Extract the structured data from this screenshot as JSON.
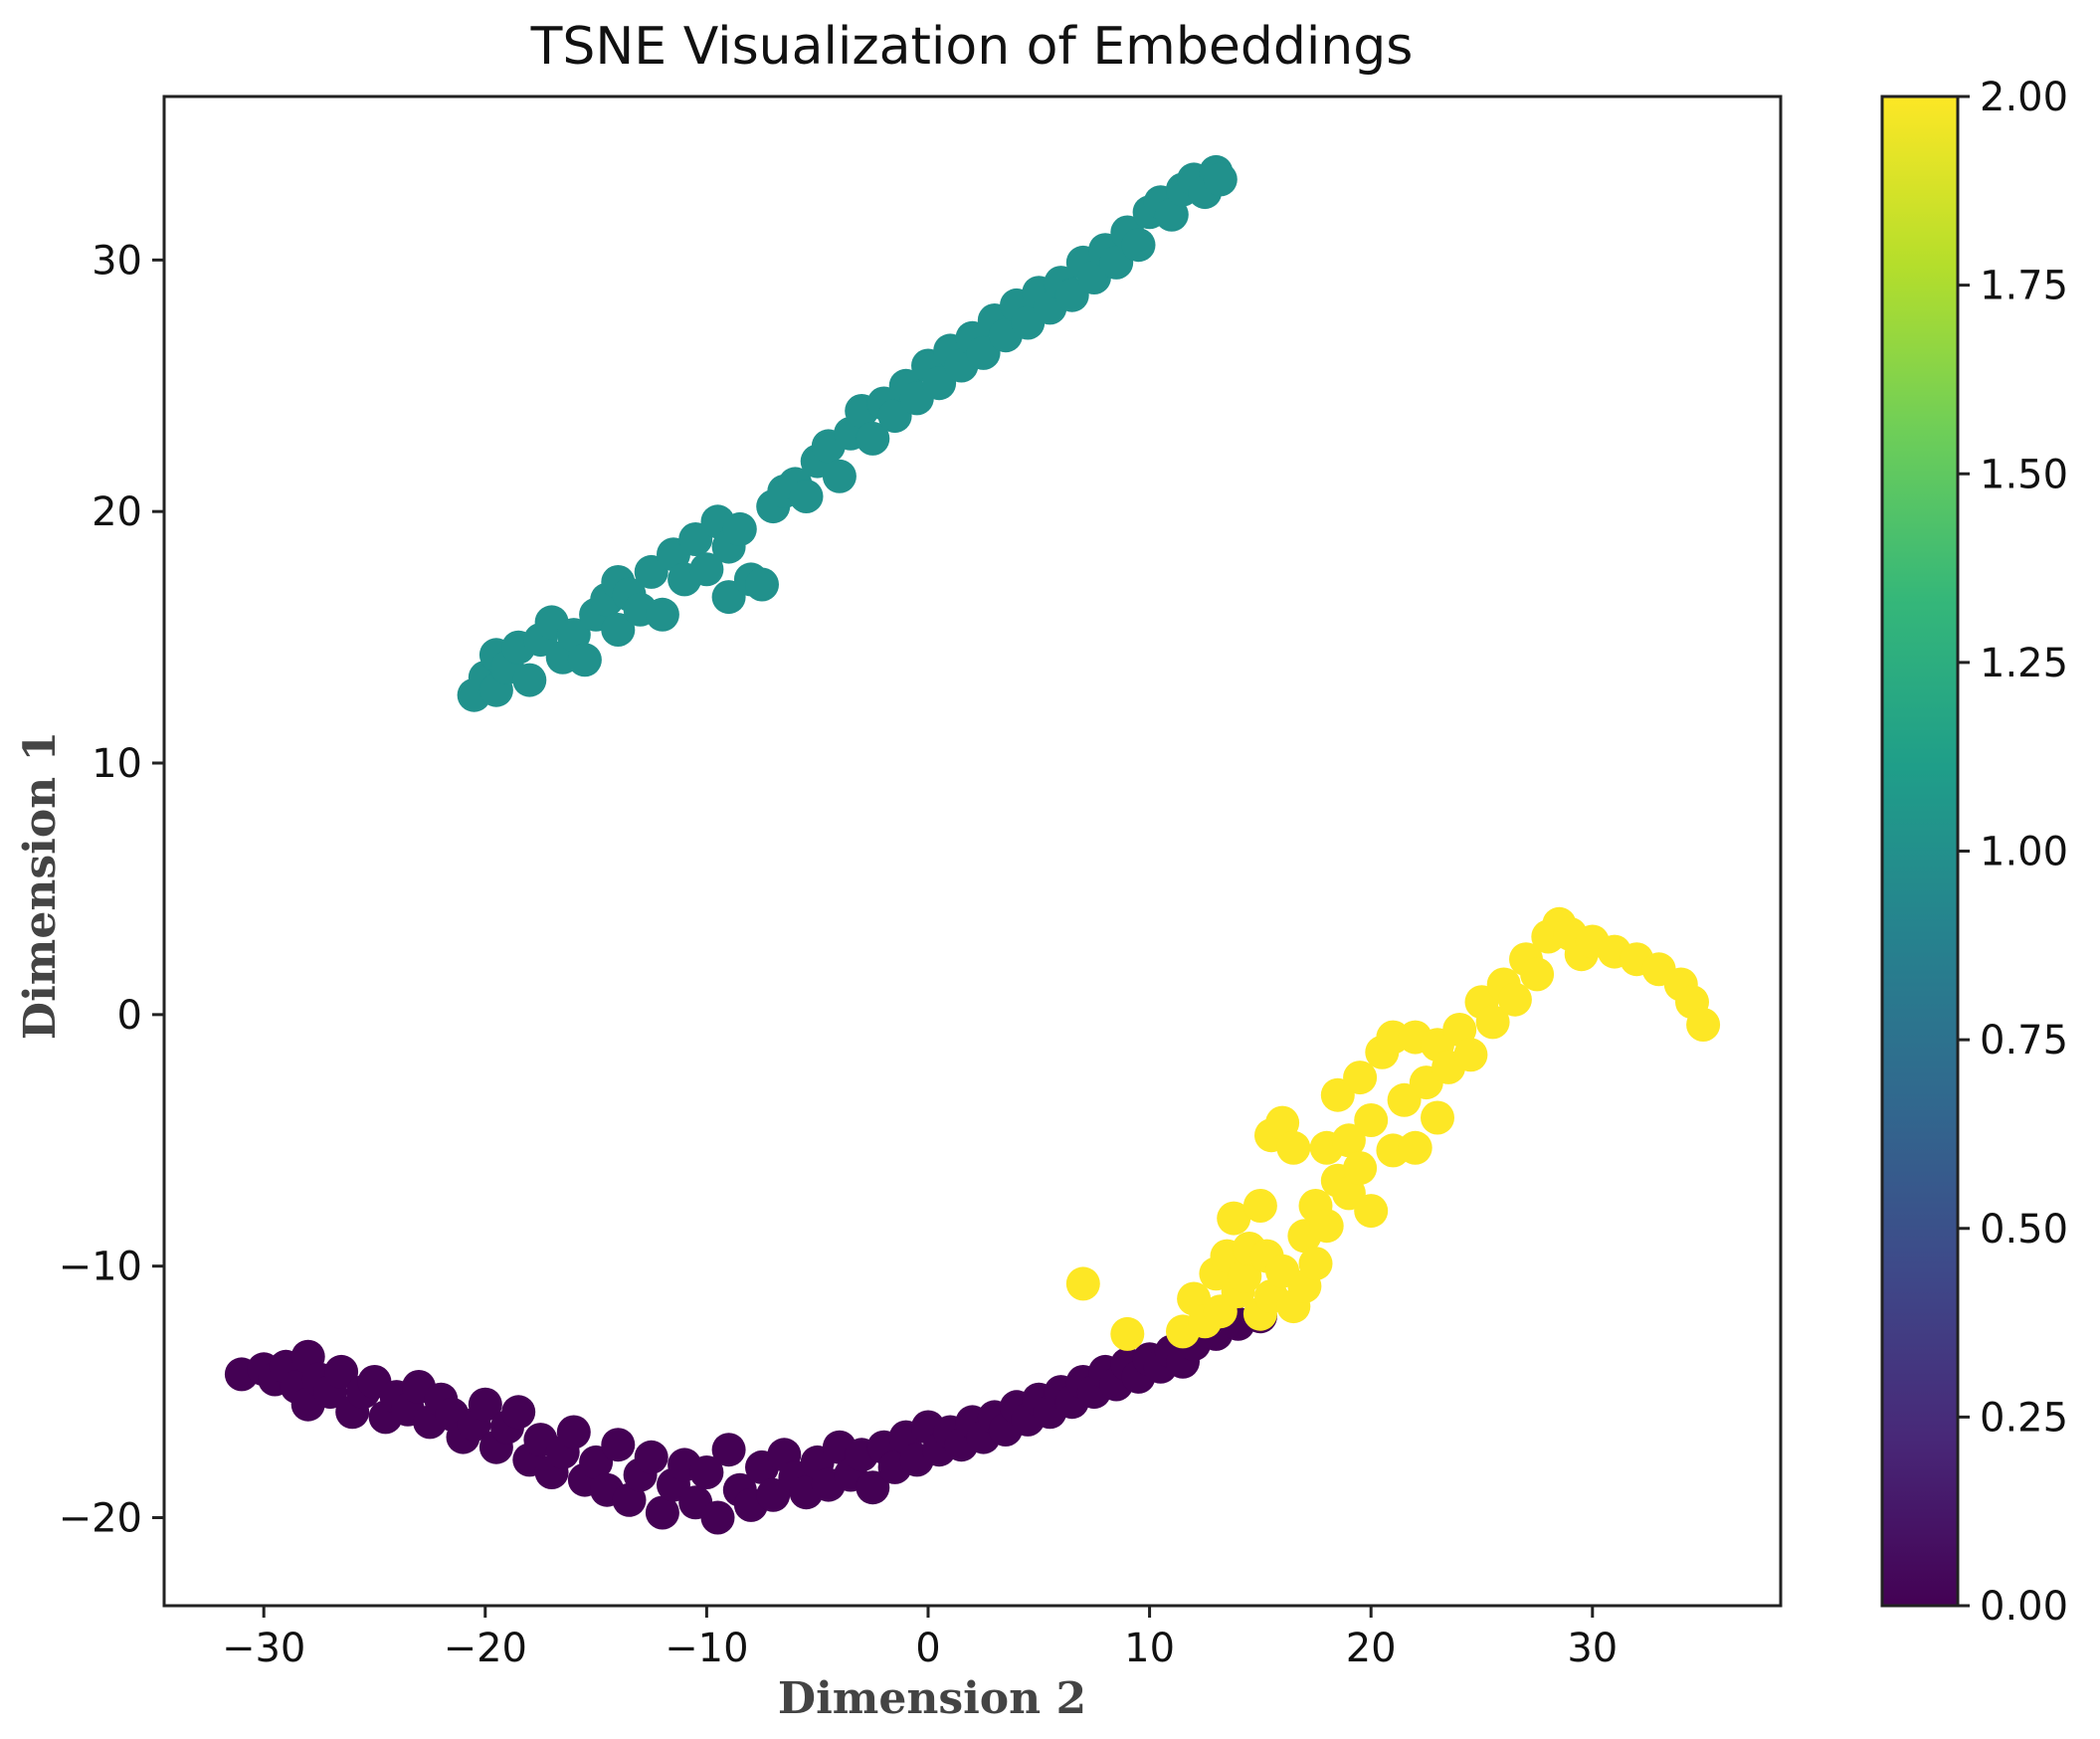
{
  "chart_data": {
    "type": "scatter",
    "title": "TSNE Visualization of Embeddings",
    "xlabel": "Dimension 2",
    "ylabel": "Dimension 1",
    "xlim": [
      -34.5,
      38.5
    ],
    "ylim": [
      -23.5,
      36.5
    ],
    "x_ticks": [
      -30,
      -20,
      -10,
      0,
      10,
      20,
      30
    ],
    "x_tick_labels": [
      "−30",
      "−20",
      "−10",
      "0",
      "10",
      "20",
      "30"
    ],
    "y_ticks": [
      -20,
      -10,
      0,
      10,
      20,
      30
    ],
    "y_tick_labels": [
      "−20",
      "−10",
      "0",
      "10",
      "20",
      "30"
    ],
    "colorbar": {
      "colormap": "viridis",
      "range": [
        0.0,
        2.0
      ],
      "ticks": [
        0.0,
        0.25,
        0.5,
        0.75,
        1.0,
        1.25,
        1.5,
        1.75,
        2.0
      ],
      "tick_labels": [
        "0.00",
        "0.25",
        "0.50",
        "0.75",
        "1.00",
        "1.25",
        "1.50",
        "1.75",
        "2.00"
      ],
      "stops": [
        "#440154",
        "#482878",
        "#3e4989",
        "#31688e",
        "#26828e",
        "#1f9e89",
        "#35b779",
        "#6ece58",
        "#b5de2b",
        "#fde725"
      ]
    },
    "series": [
      {
        "name": "0",
        "label_value": 0.0,
        "color": "#440154",
        "points": [
          [
            -31,
            -14.3
          ],
          [
            -30,
            -14.1
          ],
          [
            -29.5,
            -14.5
          ],
          [
            -29,
            -14
          ],
          [
            -28.5,
            -14.8
          ],
          [
            -28,
            -13.6
          ],
          [
            -28,
            -15.5
          ],
          [
            -27.5,
            -14.5
          ],
          [
            -27,
            -15
          ],
          [
            -26.5,
            -14.2
          ],
          [
            -26,
            -15.8
          ],
          [
            -25.5,
            -15
          ],
          [
            -25,
            -14.6
          ],
          [
            -24.5,
            -16
          ],
          [
            -24,
            -15.2
          ],
          [
            -23.5,
            -15.7
          ],
          [
            -23,
            -14.8
          ],
          [
            -22.5,
            -16.2
          ],
          [
            -22,
            -15.3
          ],
          [
            -21.5,
            -15.9
          ],
          [
            -21,
            -16.8
          ],
          [
            -20.5,
            -16.3
          ],
          [
            -20,
            -15.5
          ],
          [
            -19.5,
            -17.2
          ],
          [
            -19,
            -16.4
          ],
          [
            -18.5,
            -15.8
          ],
          [
            -18,
            -17.7
          ],
          [
            -17.5,
            -16.9
          ],
          [
            -17,
            -18.2
          ],
          [
            -16.5,
            -17.4
          ],
          [
            -16,
            -16.6
          ],
          [
            -15.5,
            -18.5
          ],
          [
            -15,
            -17.8
          ],
          [
            -14.5,
            -18.9
          ],
          [
            -14,
            -17.1
          ],
          [
            -13.5,
            -19.3
          ],
          [
            -13,
            -18.3
          ],
          [
            -12.5,
            -17.6
          ],
          [
            -12,
            -19.8
          ],
          [
            -11.5,
            -18.7
          ],
          [
            -11,
            -17.9
          ],
          [
            -10.5,
            -19.4
          ],
          [
            -10,
            -18.2
          ],
          [
            -9.5,
            -20
          ],
          [
            -9,
            -17.3
          ],
          [
            -8.5,
            -18.9
          ],
          [
            -8,
            -19.5
          ],
          [
            -7.5,
            -18
          ],
          [
            -7,
            -19.1
          ],
          [
            -6.5,
            -17.5
          ],
          [
            -6,
            -18.4
          ],
          [
            -5.5,
            -19
          ],
          [
            -5,
            -17.8
          ],
          [
            -4.5,
            -18.7
          ],
          [
            -4,
            -17.2
          ],
          [
            -3.5,
            -18.3
          ],
          [
            -3,
            -17.5
          ],
          [
            -2.5,
            -18.8
          ],
          [
            -2,
            -17.2
          ],
          [
            -1.5,
            -18
          ],
          [
            -1,
            -16.8
          ],
          [
            -0.5,
            -17.7
          ],
          [
            0,
            -16.4
          ],
          [
            0.5,
            -17.3
          ],
          [
            1,
            -16.6
          ],
          [
            1.5,
            -17.1
          ],
          [
            2,
            -16.2
          ],
          [
            2.5,
            -16.8
          ],
          [
            3,
            -16
          ],
          [
            3.5,
            -16.5
          ],
          [
            4,
            -15.6
          ],
          [
            4.5,
            -16.1
          ],
          [
            5,
            -15.3
          ],
          [
            5.5,
            -15.8
          ],
          [
            6,
            -15
          ],
          [
            6.5,
            -15.4
          ],
          [
            7,
            -14.6
          ],
          [
            7.5,
            -15
          ],
          [
            8,
            -14.2
          ],
          [
            8.5,
            -14.7
          ],
          [
            9,
            -13.9
          ],
          [
            9.5,
            -14.4
          ],
          [
            10,
            -13.7
          ],
          [
            10.5,
            -14
          ],
          [
            11,
            -13.4
          ],
          [
            11.5,
            -13.8
          ],
          [
            12,
            -13.1
          ],
          [
            13,
            -12.7
          ],
          [
            14,
            -12.3
          ],
          [
            15,
            -12
          ]
        ]
      },
      {
        "name": "1",
        "label_value": 1.0,
        "color": "#21918c",
        "points": [
          [
            -20.5,
            12.7
          ],
          [
            -20,
            13.4
          ],
          [
            -19.5,
            12.9
          ],
          [
            -19.5,
            14.3
          ],
          [
            -19,
            13.8
          ],
          [
            -18.5,
            14.6
          ],
          [
            -18,
            13.3
          ],
          [
            -17.5,
            14.9
          ],
          [
            -17,
            15.6
          ],
          [
            -16.5,
            14.2
          ],
          [
            -16,
            15.1
          ],
          [
            -15.5,
            14.1
          ],
          [
            -15,
            15.9
          ],
          [
            -14.5,
            16.5
          ],
          [
            -14,
            15.3
          ],
          [
            -14,
            17.2
          ],
          [
            -13.5,
            16.7
          ],
          [
            -13,
            16.1
          ],
          [
            -12.5,
            17.6
          ],
          [
            -12,
            15.9
          ],
          [
            -11.5,
            18.3
          ],
          [
            -11,
            17.3
          ],
          [
            -10.5,
            18.9
          ],
          [
            -10,
            17.7
          ],
          [
            -9.5,
            19.6
          ],
          [
            -9,
            18.6
          ],
          [
            -9,
            16.6
          ],
          [
            -8.5,
            19.3
          ],
          [
            -8,
            17.3
          ],
          [
            -7.5,
            17.1
          ],
          [
            -7,
            20.2
          ],
          [
            -6.5,
            20.8
          ],
          [
            -6,
            21.1
          ],
          [
            -5.5,
            20.6
          ],
          [
            -5,
            22
          ],
          [
            -4.5,
            22.6
          ],
          [
            -4,
            21.4
          ],
          [
            -3.5,
            23.1
          ],
          [
            -3,
            24
          ],
          [
            -2.5,
            22.9
          ],
          [
            -2,
            24.3
          ],
          [
            -1.5,
            23.8
          ],
          [
            -1,
            25
          ],
          [
            -0.5,
            24.5
          ],
          [
            0,
            25.8
          ],
          [
            0.5,
            25.1
          ],
          [
            1,
            26.4
          ],
          [
            1.5,
            25.8
          ],
          [
            2,
            26.9
          ],
          [
            2.5,
            26.3
          ],
          [
            3,
            27.6
          ],
          [
            3.5,
            27
          ],
          [
            4,
            28.2
          ],
          [
            4.5,
            27.5
          ],
          [
            5,
            28.7
          ],
          [
            5.5,
            28.1
          ],
          [
            6,
            29.1
          ],
          [
            6.5,
            28.6
          ],
          [
            7,
            29.9
          ],
          [
            7.5,
            29.3
          ],
          [
            8,
            30.4
          ],
          [
            8.5,
            29.9
          ],
          [
            9,
            31.1
          ],
          [
            9.5,
            30.6
          ],
          [
            10,
            31.9
          ],
          [
            10.5,
            32.3
          ],
          [
            11,
            31.8
          ],
          [
            11.5,
            32.8
          ],
          [
            12,
            33.2
          ],
          [
            12.5,
            32.7
          ],
          [
            13,
            33.5
          ],
          [
            13.2,
            33.2
          ]
        ]
      },
      {
        "name": "2",
        "label_value": 2.0,
        "color": "#fde725",
        "points": [
          [
            7,
            -10.7
          ],
          [
            9,
            -12.7
          ],
          [
            11.5,
            -12.6
          ],
          [
            12,
            -11.3
          ],
          [
            12.5,
            -12.2
          ],
          [
            13,
            -10.3
          ],
          [
            13.2,
            -11.8
          ],
          [
            13.5,
            -9.6
          ],
          [
            13.8,
            -8.1
          ],
          [
            14,
            -11
          ],
          [
            14.3,
            -10.4
          ],
          [
            14.5,
            -9.3
          ],
          [
            15,
            -11.9
          ],
          [
            15,
            -7.6
          ],
          [
            15.3,
            -9.6
          ],
          [
            15.5,
            -11.2
          ],
          [
            15.5,
            -4.8
          ],
          [
            16,
            -4.3
          ],
          [
            16,
            -10.2
          ],
          [
            16.5,
            -5.3
          ],
          [
            16.5,
            -11.6
          ],
          [
            17,
            -10.8
          ],
          [
            17,
            -8.8
          ],
          [
            17.5,
            -9.9
          ],
          [
            17.5,
            -7.6
          ],
          [
            18,
            -5.3
          ],
          [
            18,
            -8.4
          ],
          [
            18.5,
            -6.6
          ],
          [
            18.5,
            -3.2
          ],
          [
            19,
            -7.1
          ],
          [
            19,
            -5
          ],
          [
            19.5,
            -6.1
          ],
          [
            19.5,
            -2.5
          ],
          [
            20,
            -4.2
          ],
          [
            20,
            -7.8
          ],
          [
            20.5,
            -1.5
          ],
          [
            21,
            -5.4
          ],
          [
            21,
            -0.9
          ],
          [
            21.5,
            -3.4
          ],
          [
            22,
            -5.3
          ],
          [
            22,
            -0.9
          ],
          [
            22.5,
            -2.7
          ],
          [
            23,
            -4.1
          ],
          [
            23,
            -1.2
          ],
          [
            23.5,
            -2.1
          ],
          [
            24,
            -0.6
          ],
          [
            24.5,
            -1.6
          ],
          [
            25,
            0.5
          ],
          [
            25.5,
            -0.3
          ],
          [
            26,
            1.2
          ],
          [
            26.5,
            0.6
          ],
          [
            27,
            2.2
          ],
          [
            27.5,
            1.6
          ],
          [
            28,
            3.1
          ],
          [
            28.5,
            3.6
          ],
          [
            29,
            3.2
          ],
          [
            29.5,
            2.4
          ],
          [
            30,
            2.9
          ],
          [
            31,
            2.5
          ],
          [
            32,
            2.2
          ],
          [
            33,
            1.8
          ],
          [
            34,
            1.2
          ],
          [
            34.5,
            0.5
          ],
          [
            35,
            -0.4
          ]
        ]
      }
    ]
  }
}
